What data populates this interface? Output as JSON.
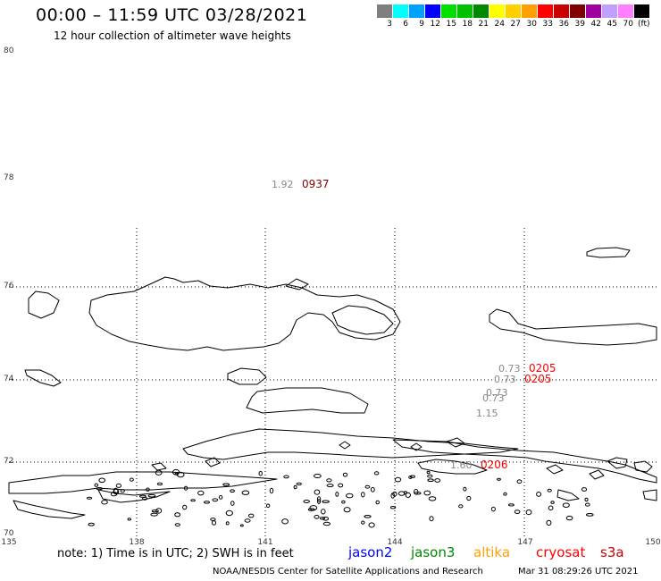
{
  "header": {
    "title": "00:00 – 11:59 UTC 03/28/2021",
    "subtitle": "12 hour collection of altimeter wave heights"
  },
  "colorbar": {
    "colors": [
      "#7f7f7f",
      "#00ffff",
      "#00a0ff",
      "#0000ff",
      "#00e000",
      "#00c000",
      "#008800",
      "#ffff00",
      "#ffd000",
      "#ffa000",
      "#ff0000",
      "#c80000",
      "#7f0000",
      "#a000a0",
      "#c0a0ff",
      "#ff80ff",
      "#000000"
    ],
    "labels": [
      "3",
      "6",
      "9",
      "12",
      "15",
      "18",
      "21",
      "24",
      "27",
      "30",
      "33",
      "36",
      "39",
      "42",
      "45",
      "70"
    ],
    "unit": "(ft)"
  },
  "axes": {
    "lat_labels": [
      "80",
      "78",
      "76",
      "74",
      "72",
      "70"
    ],
    "lon_labels": [
      "135",
      "138",
      "141",
      "144",
      "147",
      "150"
    ]
  },
  "observations": [
    {
      "swh": "1.92",
      "time": "0937",
      "color": "#7f0000"
    },
    {
      "swh": "0.73",
      "time": "0205",
      "color": "#ff0000"
    },
    {
      "swh": "0.73",
      "time": "0205",
      "color": "#ff0000"
    },
    {
      "swh": "0.73",
      "time": "",
      "color": ""
    },
    {
      "swh": "0.73",
      "time": "",
      "color": ""
    },
    {
      "swh": "1.15",
      "time": "",
      "color": ""
    },
    {
      "swh": "1.60",
      "time": "0206",
      "color": "#ff0000"
    }
  ],
  "footer": {
    "note": "note:  1) Time is in UTC;  2) SWH is in feet",
    "satellites": [
      {
        "name": "jason2",
        "color": "#0000ff"
      },
      {
        "name": "jason3",
        "color": "#008800"
      },
      {
        "name": "altika",
        "color": "#ffa000"
      },
      {
        "name": "cryosat",
        "color": "#ff0000"
      },
      {
        "name": "s3a",
        "color": "#c80000"
      }
    ],
    "credit": "NOAA/NESDIS Center for Satellite Applications and Research",
    "timestamp": "Mar 31 08:29:26 UTC 2021"
  }
}
